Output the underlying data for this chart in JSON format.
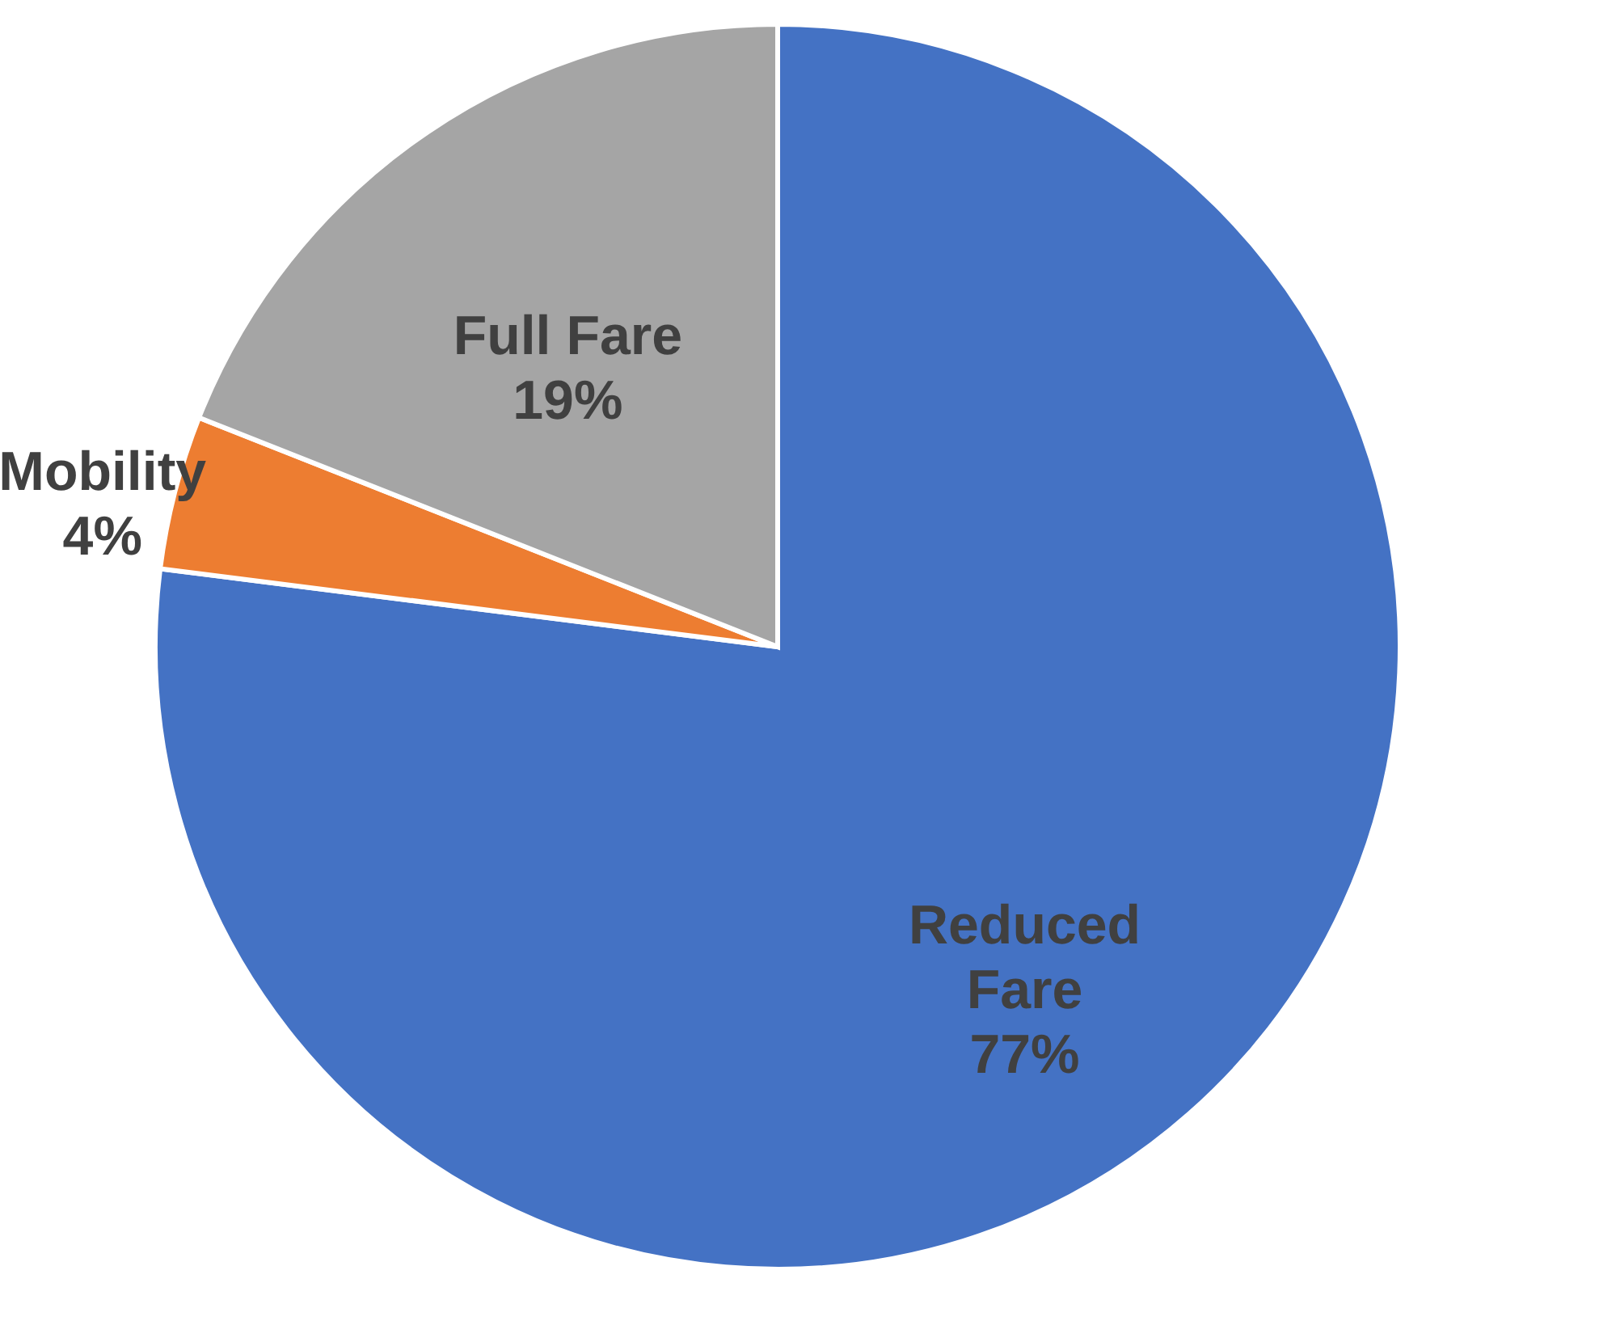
{
  "chart_data": {
    "type": "pie",
    "categories": [
      "Reduced Fare",
      "Mobility",
      "Full Fare"
    ],
    "values": [
      77,
      4,
      19
    ],
    "colors": [
      "#4472c4",
      "#ed7d31",
      "#a5a5a5"
    ],
    "value_labels": [
      "77%",
      "4%",
      "19%"
    ],
    "legend": false
  }
}
